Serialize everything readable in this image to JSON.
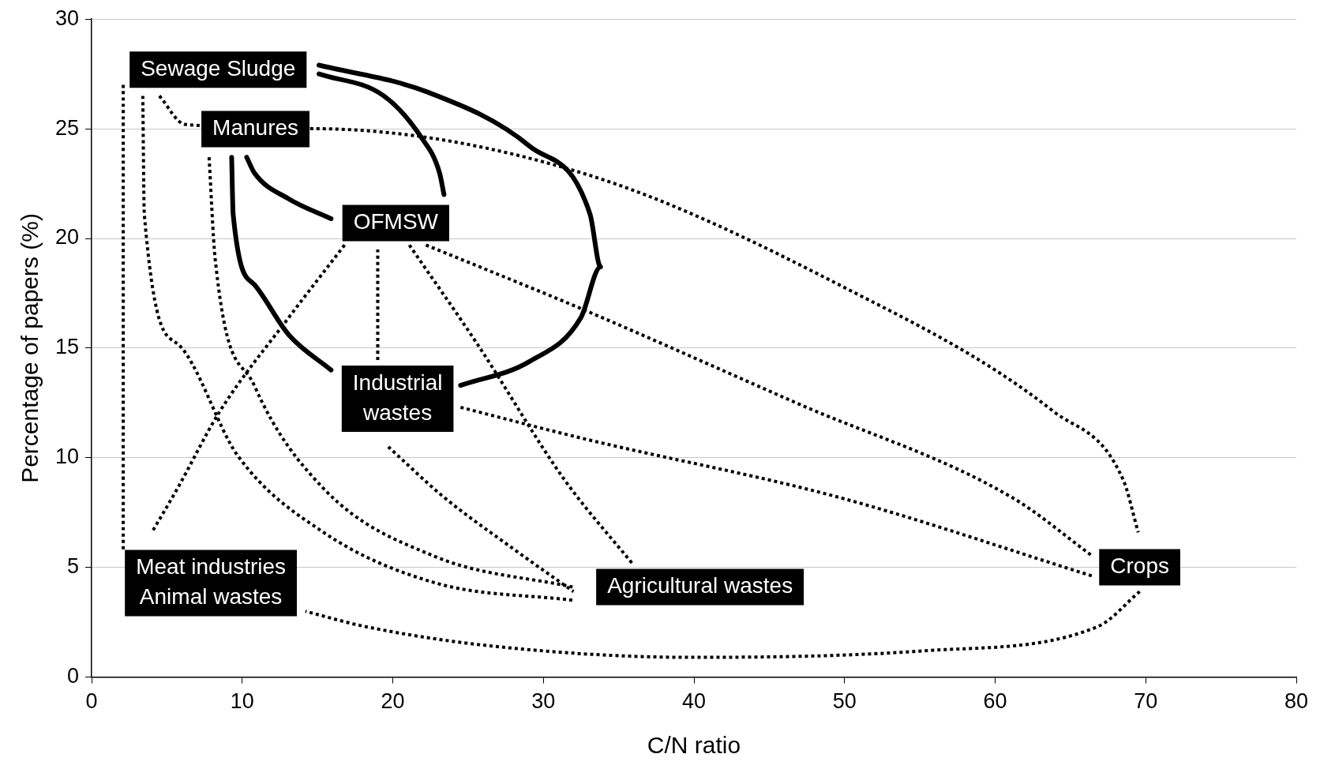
{
  "chart_data": {
    "type": "line",
    "xlabel": "C/N ratio",
    "ylabel": "Percentage of papers (%)",
    "xlim": [
      0,
      80
    ],
    "xticks": [
      0,
      10,
      20,
      30,
      40,
      50,
      60,
      70,
      80
    ],
    "ylim": [
      0,
      30
    ],
    "yticks": [
      0,
      5,
      10,
      15,
      20,
      25,
      30
    ],
    "grid": "y",
    "legend": false,
    "marker": "none",
    "series": [
      {
        "color": "#000000",
        "line_style": "solid",
        "x": [
          15.1,
          19.4,
          21.9,
          23.1,
          23.4
        ],
        "values": [
          27.5,
          26.5,
          24.6,
          23.0,
          22.0
        ]
      },
      {
        "color": "#000000",
        "line_style": "solid",
        "x": [
          15.1,
          22.2,
          29.1,
          33.1,
          33.8,
          32.5,
          29.1,
          24.5
        ],
        "values": [
          27.9,
          26.7,
          24.2,
          21.1,
          18.7,
          16.4,
          14.4,
          13.3
        ]
      },
      {
        "color": "#000000",
        "line_style": "solid",
        "x": [
          10.3,
          10.8,
          13.1,
          15.9
        ],
        "values": [
          23.7,
          23.0,
          21.8,
          20.9
        ]
      },
      {
        "color": "#000000",
        "line_style": "solid",
        "x": [
          9.3,
          9.4,
          10.8,
          13.1,
          15.9
        ],
        "values": [
          23.7,
          21.1,
          17.9,
          15.6,
          14.0
        ]
      },
      {
        "color": "#000000",
        "line_style": "dotted",
        "x": [
          2.1,
          2.1
        ],
        "values": [
          27.0,
          5.8
        ]
      },
      {
        "color": "#000000",
        "line_style": "dotted",
        "x": [
          4.5,
          6.2,
          15.4,
          32.5,
          49.6,
          63.9,
          68.5,
          69.5
        ],
        "values": [
          26.5,
          25.2,
          25.0,
          23.0,
          17.9,
          12.1,
          9.0,
          6.6
        ]
      },
      {
        "color": "#000000",
        "line_style": "dotted",
        "x": [
          69.6,
          66.8,
          55.3,
          39.9,
          26.8,
          18.2,
          14.2
        ],
        "values": [
          3.9,
          2.3,
          1.2,
          0.9,
          1.4,
          2.3,
          3.0
        ]
      },
      {
        "color": "#000000",
        "line_style": "dotted",
        "x": [
          3.4,
          3.5,
          5.7,
          9.7,
          15.4,
          22.8,
          32.0
        ],
        "values": [
          26.5,
          21.1,
          15.2,
          10.1,
          6.6,
          4.3,
          3.5
        ]
      },
      {
        "color": "#000000",
        "line_style": "dotted",
        "x": [
          7.8,
          8.2,
          10.8,
          15.4,
          22.8,
          32.0
        ],
        "values": [
          23.7,
          19.1,
          13.3,
          8.6,
          5.5,
          4.1
        ]
      },
      {
        "color": "#000000",
        "line_style": "dotted",
        "x": [
          16.8,
          13.1,
          8.5,
          5.7,
          4.0
        ],
        "values": [
          19.7,
          16.4,
          12.1,
          8.6,
          6.6
        ]
      },
      {
        "color": "#000000",
        "line_style": "dotted",
        "x": [
          19.0,
          19.0
        ],
        "values": [
          19.5,
          14.4
        ]
      },
      {
        "color": "#000000",
        "line_style": "dotted",
        "x": [
          21.1,
          25.6,
          31.4,
          36.0
        ],
        "values": [
          19.7,
          15.2,
          9.0,
          5.1
        ]
      },
      {
        "color": "#000000",
        "line_style": "dotted",
        "x": [
          22.2,
          32.5,
          46.8,
          61.1,
          66.5
        ],
        "values": [
          19.7,
          16.8,
          12.5,
          8.2,
          5.5
        ]
      },
      {
        "color": "#000000",
        "line_style": "dotted",
        "x": [
          24.5,
          32.5,
          49.6,
          66.5
        ],
        "values": [
          12.3,
          10.9,
          8.2,
          4.6
        ]
      },
      {
        "color": "#000000",
        "line_style": "dotted",
        "x": [
          19.7,
          23.4,
          27.9,
          32.0
        ],
        "values": [
          10.5,
          8.2,
          5.9,
          3.9
        ]
      }
    ],
    "annotations": [
      "Sewage Sludge",
      "Manures",
      "OFMSW",
      "Industrial\nwastes",
      "Meat industries\nAnimal wastes",
      "Agricultural wastes",
      "Crops"
    ]
  }
}
